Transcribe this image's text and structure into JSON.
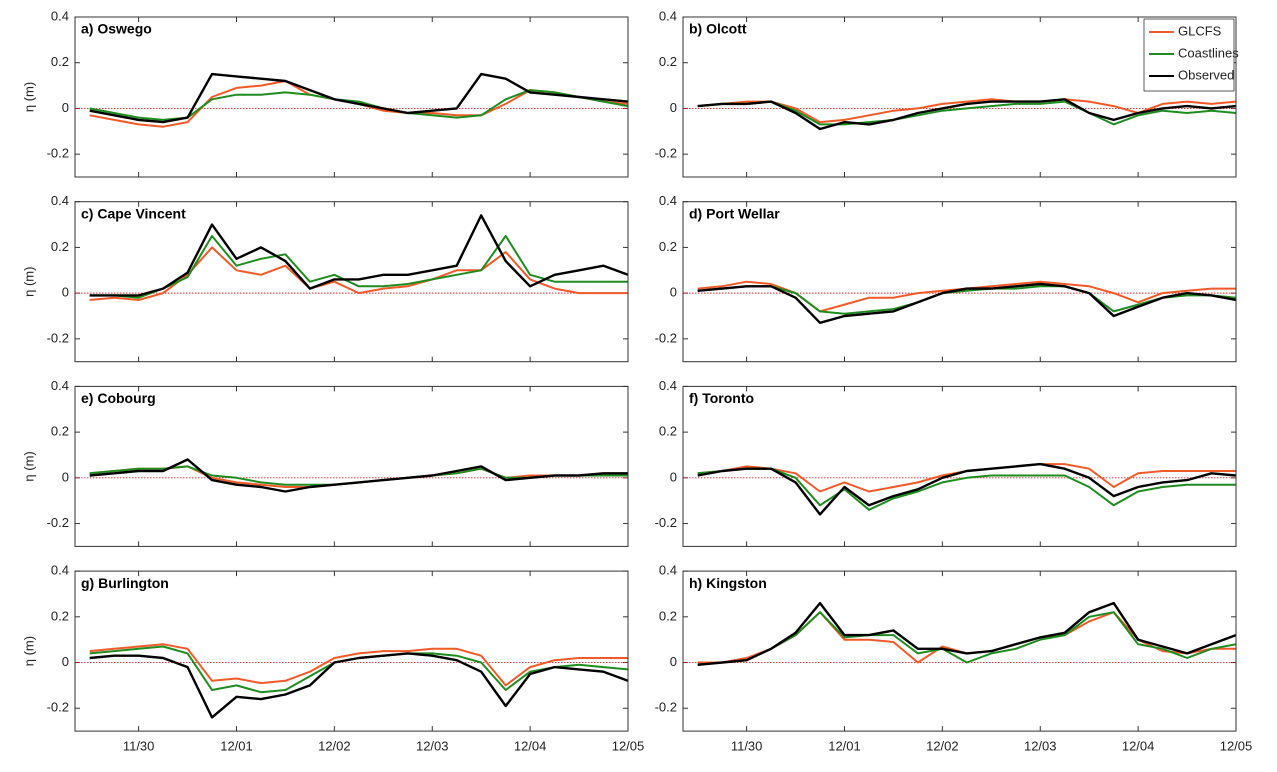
{
  "chart_data": [
    {
      "type": "line",
      "title": "a) Oswego",
      "ylabel": "η (m)",
      "x": [
        -0.5,
        -0.25,
        0,
        0.25,
        0.5,
        0.75,
        1,
        1.25,
        1.5,
        1.75,
        2,
        2.25,
        2.5,
        2.75,
        3,
        3.25,
        3.5,
        3.75,
        4,
        4.25,
        4.5,
        4.75,
        5
      ],
      "xlim": [
        -0.65,
        5
      ],
      "xticks": [
        0,
        1,
        2,
        3,
        4,
        5
      ],
      "ylim": [
        -0.3,
        0.4
      ],
      "yticks": [
        -0.2,
        0,
        0.2,
        0.4
      ],
      "hline": 0,
      "series": [
        {
          "color": "#f05a28",
          "values": [
            -0.03,
            -0.05,
            -0.07,
            -0.08,
            -0.06,
            0.05,
            0.09,
            0.1,
            0.12,
            0.06,
            0.04,
            0.02,
            -0.01,
            -0.02,
            -0.02,
            -0.03,
            -0.03,
            0.02,
            0.08,
            0.07,
            0.05,
            0.03,
            0.02
          ]
        },
        {
          "color": "#1e8c1e",
          "values": [
            0,
            -0.02,
            -0.04,
            -0.05,
            -0.04,
            0.04,
            0.06,
            0.06,
            0.07,
            0.06,
            0.04,
            0.03,
            0,
            -0.02,
            -0.03,
            -0.04,
            -0.03,
            0.04,
            0.08,
            0.07,
            0.05,
            0.03,
            0.01
          ]
        },
        {
          "color": "#000000",
          "values": [
            -0.01,
            -0.03,
            -0.05,
            -0.06,
            -0.04,
            0.15,
            0.14,
            0.13,
            0.12,
            0.08,
            0.04,
            0.02,
            0,
            -0.02,
            -0.01,
            0,
            0.15,
            0.13,
            0.07,
            0.06,
            0.05,
            0.04,
            0.03
          ]
        }
      ]
    },
    {
      "type": "line",
      "title": "b) Olcott",
      "legend": "upper right",
      "x": [
        -0.5,
        -0.25,
        0,
        0.25,
        0.5,
        0.75,
        1,
        1.25,
        1.5,
        1.75,
        2,
        2.25,
        2.5,
        2.75,
        3,
        3.25,
        3.5,
        3.75,
        4,
        4.25,
        4.5,
        4.75,
        5
      ],
      "xlim": [
        -0.65,
        5
      ],
      "xticks": [
        0,
        1,
        2,
        3,
        4,
        5
      ],
      "ylim": [
        -0.3,
        0.4
      ],
      "yticks": [
        -0.2,
        0,
        0.2,
        0.4
      ],
      "hline": 0,
      "series": [
        {
          "name": "GLCFS",
          "color": "#f05a28",
          "values": [
            0.01,
            0.02,
            0.03,
            0.03,
            0,
            -0.06,
            -0.05,
            -0.03,
            -0.01,
            0,
            0.02,
            0.03,
            0.04,
            0.03,
            0.03,
            0.04,
            0.03,
            0.01,
            -0.02,
            0.02,
            0.03,
            0.02,
            0.03
          ]
        },
        {
          "name": "Coastlines",
          "color": "#1e8c1e",
          "values": [
            0.01,
            0.02,
            0.02,
            0.03,
            -0.01,
            -0.07,
            -0.07,
            -0.06,
            -0.05,
            -0.03,
            -0.01,
            0,
            0.01,
            0.02,
            0.02,
            0.03,
            -0.02,
            -0.07,
            -0.03,
            -0.01,
            -0.02,
            -0.01,
            -0.02
          ]
        },
        {
          "name": "Observed",
          "color": "#000000",
          "values": [
            0.01,
            0.02,
            0.02,
            0.03,
            -0.02,
            -0.09,
            -0.06,
            -0.07,
            -0.05,
            -0.02,
            0,
            0.02,
            0.03,
            0.03,
            0.03,
            0.04,
            -0.02,
            -0.05,
            -0.02,
            0,
            0.01,
            0,
            0.01
          ]
        }
      ]
    },
    {
      "type": "line",
      "title": "c) Cape Vincent",
      "ylabel": "η (m)",
      "x": [
        -0.5,
        -0.25,
        0,
        0.25,
        0.5,
        0.75,
        1,
        1.25,
        1.5,
        1.75,
        2,
        2.25,
        2.5,
        2.75,
        3,
        3.25,
        3.5,
        3.75,
        4,
        4.25,
        4.5,
        4.75,
        5
      ],
      "xlim": [
        -0.65,
        5
      ],
      "xticks": [
        0,
        1,
        2,
        3,
        4,
        5
      ],
      "ylim": [
        -0.3,
        0.4
      ],
      "yticks": [
        -0.2,
        0,
        0.2,
        0.4
      ],
      "hline": 0,
      "series": [
        {
          "color": "#f05a28",
          "values": [
            -0.03,
            -0.02,
            -0.03,
            0,
            0.08,
            0.2,
            0.1,
            0.08,
            0.12,
            0.02,
            0.05,
            0,
            0.02,
            0.03,
            0.06,
            0.1,
            0.1,
            0.18,
            0.06,
            0.02,
            0,
            0,
            0
          ]
        },
        {
          "color": "#1e8c1e",
          "values": [
            -0.01,
            -0.01,
            -0.02,
            0.02,
            0.07,
            0.25,
            0.12,
            0.15,
            0.17,
            0.05,
            0.08,
            0.03,
            0.03,
            0.04,
            0.06,
            0.08,
            0.1,
            0.25,
            0.08,
            0.05,
            0.05,
            0.05,
            0.05
          ]
        },
        {
          "color": "#000000",
          "values": [
            -0.01,
            -0.01,
            -0.01,
            0.02,
            0.09,
            0.3,
            0.15,
            0.2,
            0.14,
            0.02,
            0.06,
            0.06,
            0.08,
            0.08,
            0.1,
            0.12,
            0.34,
            0.14,
            0.03,
            0.08,
            0.1,
            0.12,
            0.08
          ]
        }
      ]
    },
    {
      "type": "line",
      "title": "d) Port Wellar",
      "x": [
        -0.5,
        -0.25,
        0,
        0.25,
        0.5,
        0.75,
        1,
        1.25,
        1.5,
        1.75,
        2,
        2.25,
        2.5,
        2.75,
        3,
        3.25,
        3.5,
        3.75,
        4,
        4.25,
        4.5,
        4.75,
        5
      ],
      "xlim": [
        -0.65,
        5
      ],
      "xticks": [
        0,
        1,
        2,
        3,
        4,
        5
      ],
      "ylim": [
        -0.3,
        0.4
      ],
      "yticks": [
        -0.2,
        0,
        0.2,
        0.4
      ],
      "hline": 0,
      "series": [
        {
          "color": "#f05a28",
          "values": [
            0.02,
            0.03,
            0.05,
            0.04,
            0,
            -0.08,
            -0.05,
            -0.02,
            -0.02,
            0,
            0.01,
            0.02,
            0.03,
            0.04,
            0.05,
            0.04,
            0.03,
            0,
            -0.04,
            0,
            0.01,
            0.02,
            0.02
          ]
        },
        {
          "color": "#1e8c1e",
          "values": [
            0.01,
            0.02,
            0.03,
            0.03,
            0,
            -0.08,
            -0.09,
            -0.08,
            -0.07,
            -0.04,
            0,
            0.01,
            0.02,
            0.02,
            0.03,
            0.03,
            0,
            -0.08,
            -0.05,
            -0.02,
            -0.01,
            -0.01,
            -0.02
          ]
        },
        {
          "color": "#000000",
          "values": [
            0.01,
            0.02,
            0.03,
            0.03,
            -0.02,
            -0.13,
            -0.1,
            -0.09,
            -0.08,
            -0.04,
            0,
            0.02,
            0.02,
            0.03,
            0.04,
            0.03,
            0,
            -0.1,
            -0.06,
            -0.02,
            0,
            -0.01,
            -0.03
          ]
        }
      ]
    },
    {
      "type": "line",
      "title": "e) Cobourg",
      "ylabel": "η (m)",
      "x": [
        -0.5,
        -0.25,
        0,
        0.25,
        0.5,
        0.75,
        1,
        1.25,
        1.5,
        1.75,
        2,
        2.25,
        2.5,
        2.75,
        3,
        3.25,
        3.5,
        3.75,
        4,
        4.25,
        4.5,
        4.75,
        5
      ],
      "xlim": [
        -0.65,
        5
      ],
      "xticks": [
        0,
        1,
        2,
        3,
        4,
        5
      ],
      "ylim": [
        -0.3,
        0.4
      ],
      "yticks": [
        -0.2,
        0,
        0.2,
        0.4
      ],
      "hline": 0,
      "series": [
        {
          "color": "#f05a28",
          "values": [
            0.02,
            0.03,
            0.04,
            0.04,
            0.05,
            0,
            -0.02,
            -0.03,
            -0.04,
            -0.04,
            -0.03,
            -0.02,
            -0.01,
            0,
            0.01,
            0.02,
            0.04,
            0,
            0.01,
            0.01,
            0.01,
            0.01,
            0.01
          ]
        },
        {
          "color": "#1e8c1e",
          "values": [
            0.02,
            0.03,
            0.04,
            0.04,
            0.05,
            0.01,
            0,
            -0.02,
            -0.03,
            -0.03,
            -0.03,
            -0.02,
            -0.01,
            0,
            0.01,
            0.02,
            0.04,
            0,
            0,
            0.01,
            0.01,
            0.01,
            0.01
          ]
        },
        {
          "color": "#000000",
          "values": [
            0.01,
            0.02,
            0.03,
            0.03,
            0.08,
            -0.01,
            -0.03,
            -0.04,
            -0.06,
            -0.04,
            -0.03,
            -0.02,
            -0.01,
            0,
            0.01,
            0.03,
            0.05,
            -0.01,
            0,
            0.01,
            0.01,
            0.02,
            0.02
          ]
        }
      ]
    },
    {
      "type": "line",
      "title": "f) Toronto",
      "x": [
        -0.5,
        -0.25,
        0,
        0.25,
        0.5,
        0.75,
        1,
        1.25,
        1.5,
        1.75,
        2,
        2.25,
        2.5,
        2.75,
        3,
        3.25,
        3.5,
        3.75,
        4,
        4.25,
        4.5,
        4.75,
        5
      ],
      "xlim": [
        -0.65,
        5
      ],
      "xticks": [
        0,
        1,
        2,
        3,
        4,
        5
      ],
      "ylim": [
        -0.3,
        0.4
      ],
      "yticks": [
        -0.2,
        0,
        0.2,
        0.4
      ],
      "hline": 0,
      "series": [
        {
          "color": "#f05a28",
          "values": [
            0.02,
            0.03,
            0.05,
            0.04,
            0.02,
            -0.06,
            -0.02,
            -0.06,
            -0.04,
            -0.02,
            0.01,
            0.03,
            0.04,
            0.05,
            0.06,
            0.06,
            0.04,
            -0.04,
            0.02,
            0.03,
            0.03,
            0.03,
            0.03
          ]
        },
        {
          "color": "#1e8c1e",
          "values": [
            0.02,
            0.03,
            0.04,
            0.04,
            0,
            -0.12,
            -0.05,
            -0.14,
            -0.09,
            -0.06,
            -0.02,
            0,
            0.01,
            0.01,
            0.01,
            0.01,
            -0.04,
            -0.12,
            -0.06,
            -0.04,
            -0.03,
            -0.03,
            -0.03
          ]
        },
        {
          "color": "#000000",
          "values": [
            0.01,
            0.03,
            0.04,
            0.04,
            -0.02,
            -0.16,
            -0.04,
            -0.12,
            -0.08,
            -0.05,
            0,
            0.03,
            0.04,
            0.05,
            0.06,
            0.04,
            0,
            -0.08,
            -0.04,
            -0.02,
            -0.01,
            0.02,
            0.01
          ]
        }
      ]
    },
    {
      "type": "line",
      "title": "g) Burlington",
      "ylabel": "η (m)",
      "x": [
        -0.5,
        -0.25,
        0,
        0.25,
        0.5,
        0.75,
        1,
        1.25,
        1.5,
        1.75,
        2,
        2.25,
        2.5,
        2.75,
        3,
        3.25,
        3.5,
        3.75,
        4,
        4.25,
        4.5,
        4.75,
        5
      ],
      "xlim": [
        -0.65,
        5
      ],
      "xticks": [
        {
          "value": 0,
          "label": "11/30"
        },
        {
          "value": 1,
          "label": "12/01"
        },
        {
          "value": 2,
          "label": "12/02"
        },
        {
          "value": 3,
          "label": "12/03"
        },
        {
          "value": 4,
          "label": "12/04"
        },
        {
          "value": 5,
          "label": "12/05"
        }
      ],
      "ylim": [
        -0.3,
        0.4
      ],
      "yticks": [
        -0.2,
        0,
        0.2,
        0.4
      ],
      "hline": 0,
      "series": [
        {
          "color": "#f05a28",
          "values": [
            0.05,
            0.06,
            0.07,
            0.08,
            0.06,
            -0.08,
            -0.07,
            -0.09,
            -0.08,
            -0.04,
            0.02,
            0.04,
            0.05,
            0.05,
            0.06,
            0.06,
            0.03,
            -0.1,
            -0.02,
            0.01,
            0.02,
            0.02,
            0.02
          ]
        },
        {
          "color": "#1e8c1e",
          "values": [
            0.04,
            0.05,
            0.06,
            0.07,
            0.04,
            -0.12,
            -0.1,
            -0.13,
            -0.12,
            -0.06,
            0,
            0.02,
            0.03,
            0.04,
            0.04,
            0.03,
            0,
            -0.12,
            -0.04,
            -0.02,
            -0.01,
            -0.02,
            -0.03
          ]
        },
        {
          "color": "#000000",
          "values": [
            0.02,
            0.03,
            0.03,
            0.02,
            -0.02,
            -0.24,
            -0.15,
            -0.16,
            -0.14,
            -0.1,
            0,
            0.02,
            0.03,
            0.04,
            0.03,
            0.01,
            -0.04,
            -0.19,
            -0.05,
            -0.02,
            -0.03,
            -0.04,
            -0.08
          ]
        }
      ]
    },
    {
      "type": "line",
      "title": "h) Kingston",
      "x": [
        -0.5,
        -0.25,
        0,
        0.25,
        0.5,
        0.75,
        1,
        1.25,
        1.5,
        1.75,
        2,
        2.25,
        2.5,
        2.75,
        3,
        3.25,
        3.5,
        3.75,
        4,
        4.25,
        4.5,
        4.75,
        5
      ],
      "xlim": [
        -0.65,
        5
      ],
      "xticks": [
        {
          "value": 0,
          "label": "11/30"
        },
        {
          "value": 1,
          "label": "12/01"
        },
        {
          "value": 2,
          "label": "12/02"
        },
        {
          "value": 3,
          "label": "12/03"
        },
        {
          "value": 4,
          "label": "12/04"
        },
        {
          "value": 5,
          "label": "12/05"
        }
      ],
      "ylim": [
        -0.3,
        0.4
      ],
      "yticks": [
        -0.2,
        0,
        0.2,
        0.4
      ],
      "hline": 0,
      "series": [
        {
          "color": "#f05a28",
          "values": [
            0,
            0,
            0.02,
            0.06,
            0.12,
            0.22,
            0.1,
            0.1,
            0.09,
            0,
            0.07,
            0.04,
            0.05,
            0.08,
            0.11,
            0.12,
            0.18,
            0.22,
            0.1,
            0.05,
            0.04,
            0.06,
            0.06
          ]
        },
        {
          "color": "#1e8c1e",
          "values": [
            -0.01,
            0,
            0.01,
            0.06,
            0.12,
            0.22,
            0.11,
            0.12,
            0.12,
            0.04,
            0.06,
            0,
            0.04,
            0.06,
            0.1,
            0.12,
            0.2,
            0.22,
            0.08,
            0.06,
            0.02,
            0.06,
            0.08
          ]
        },
        {
          "color": "#000000",
          "values": [
            -0.01,
            0,
            0.01,
            0.06,
            0.13,
            0.26,
            0.12,
            0.12,
            0.14,
            0.06,
            0.06,
            0.04,
            0.05,
            0.08,
            0.11,
            0.13,
            0.22,
            0.26,
            0.1,
            0.07,
            0.04,
            0.08,
            0.12
          ]
        }
      ]
    }
  ]
}
